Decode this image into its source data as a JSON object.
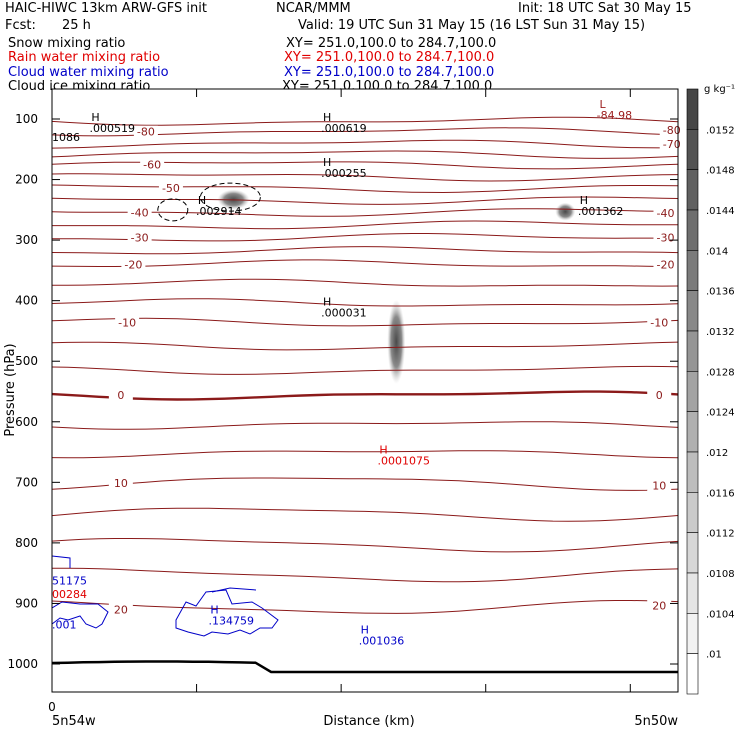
{
  "header": {
    "left_title": "HAIC-HIWC 13km ARW-GFS init",
    "org": "NCAR/MMM",
    "init": "Init: 18 UTC Sat 30 May 15",
    "fcst_label": "Fcst:",
    "fcst_value": "25 h",
    "valid": "Valid: 19 UTC Sun 31 May 15 (16 LST Sun 31 May 15)"
  },
  "legend_fields": [
    {
      "name": "Snow mixing ratio",
      "xy": "XY= 251.0,100.0 to 284.7,100.0",
      "color": "#000000"
    },
    {
      "name": "Rain water mixing ratio",
      "xy": "XY= 251.0,100.0 to 284.7,100.0",
      "color": "#e00000"
    },
    {
      "name": "Cloud water mixing ratio",
      "xy": "XY= 251.0,100.0 to 284.7,100.0",
      "color": "#0000c8"
    },
    {
      "name": "Cloud ice mixing ratio",
      "xy": "XY= 251.0,100.0 to 284.7,100.0",
      "color": "#000000"
    }
  ],
  "chart_data": {
    "type": "cross-section contour",
    "ylabel": "Pressure (hPa)",
    "xlabel": "Distance (km)",
    "y_ticks": [
      100,
      200,
      300,
      400,
      500,
      600,
      700,
      800,
      900,
      1000
    ],
    "x_start_tick": "0",
    "x_left_label": "5n54w",
    "x_right_label": "5n50w",
    "colorbar": {
      "unit": "g kg⁻¹",
      "levels": [
        ".0152",
        ".0148",
        ".0144",
        ".014",
        ".0136",
        ".0132",
        ".0128",
        ".0124",
        ".012",
        ".0116",
        ".0112",
        ".0108",
        ".0104",
        ".01"
      ]
    },
    "temperature_contour_labels": [
      {
        "value": "-80",
        "x": 0.15,
        "p": 121
      },
      {
        "value": "-80",
        "x": 0.99,
        "p": 118
      },
      {
        "value": "-70",
        "x": 0.99,
        "p": 141
      },
      {
        "value": "-60",
        "x": 0.16,
        "p": 175
      },
      {
        "value": "-50",
        "x": 0.19,
        "p": 214
      },
      {
        "value": "-40",
        "x": 0.14,
        "p": 254
      },
      {
        "value": "-40",
        "x": 0.98,
        "p": 255
      },
      {
        "value": "-30",
        "x": 0.14,
        "p": 296
      },
      {
        "value": "-30",
        "x": 0.98,
        "p": 296
      },
      {
        "value": "-20",
        "x": 0.13,
        "p": 340
      },
      {
        "value": "-20",
        "x": 0.98,
        "p": 340
      },
      {
        "value": "-10",
        "x": 0.12,
        "p": 436
      },
      {
        "value": "-10",
        "x": 0.97,
        "p": 436
      },
      {
        "value": "0",
        "x": 0.11,
        "p": 556
      },
      {
        "value": "0",
        "x": 0.97,
        "p": 556
      },
      {
        "value": "10",
        "x": 0.11,
        "p": 701
      },
      {
        "value": "10",
        "x": 0.97,
        "p": 705
      },
      {
        "value": "20",
        "x": 0.11,
        "p": 910
      },
      {
        "value": "20",
        "x": 0.97,
        "p": 903
      }
    ],
    "extrema": [
      {
        "kind": "L",
        "value": "-84.98",
        "x": 0.87,
        "p": 82,
        "color": "#9b1c1c"
      },
      {
        "kind": "H",
        "value": ".000519",
        "x": 0.06,
        "p": 103,
        "color": "#000000"
      },
      {
        "kind": "H",
        "value": ".000619",
        "x": 0.43,
        "p": 103,
        "color": "#000000"
      },
      {
        "kind": "H",
        "value": ".000255",
        "x": 0.43,
        "p": 178,
        "color": "#000000"
      },
      {
        "kind": "H",
        "value": ".002914",
        "x": 0.23,
        "p": 240,
        "color": "#000000"
      },
      {
        "kind": "H",
        "value": ".001362",
        "x": 0.84,
        "p": 240,
        "color": "#000000"
      },
      {
        "kind": "H",
        "value": ".000031",
        "x": 0.43,
        "p": 408,
        "color": "#000000"
      },
      {
        "kind": "H",
        "value": ".0001075",
        "x": 0.52,
        "p": 652,
        "color": "#e00000"
      },
      {
        "kind": "H",
        "value": ".134759",
        "x": 0.25,
        "p": 917,
        "color": "#0000c8"
      },
      {
        "kind": "H",
        "value": ".001036",
        "x": 0.49,
        "p": 950,
        "color": "#0000c8"
      }
    ],
    "edge_labels": [
      {
        "text": "1086",
        "color": "#000000",
        "p": 130
      },
      {
        "text": "51175",
        "color": "#0000c8",
        "p": 862
      },
      {
        "text": "00284",
        "color": "#e00000",
        "p": 884
      },
      {
        "text": ".001",
        "color": "#0000c8",
        "p": 935
      }
    ]
  }
}
